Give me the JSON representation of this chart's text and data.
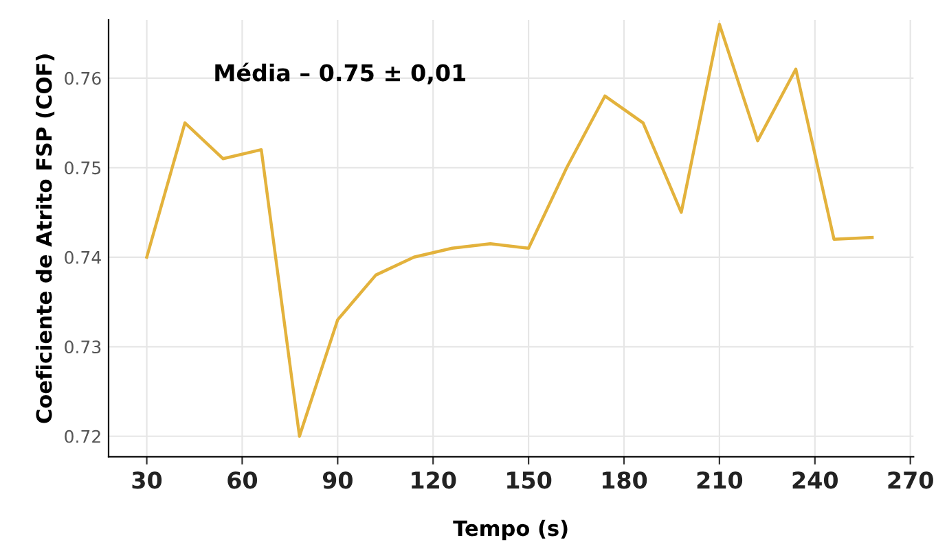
{
  "chart_data": {
    "type": "line",
    "xlabel": "Tempo (s)",
    "ylabel": "Coeficiente de Atrito FSP (COF)",
    "annotations": [
      "Média – 0.75 ± 0,01"
    ],
    "x": [
      30,
      42,
      54,
      66,
      78,
      90,
      102,
      114,
      126,
      138,
      150,
      162,
      174,
      186,
      198,
      210,
      222,
      234,
      246,
      258
    ],
    "series": [
      {
        "color": "#e3b23c",
        "values": [
          0.74,
          0.755,
          0.751,
          0.752,
          0.72,
          0.733,
          0.738,
          0.74,
          0.741,
          0.7415,
          0.741,
          0.75,
          0.758,
          0.755,
          0.745,
          0.766,
          0.753,
          0.761,
          0.742,
          0.7422
        ]
      }
    ],
    "xlim": [
      18,
      271
    ],
    "ylim": [
      0.7177,
      0.7665
    ],
    "xticks": [
      30,
      60,
      90,
      120,
      150,
      180,
      210,
      240,
      270
    ],
    "yticks": [
      {
        "value": 0.72,
        "label": "0.72"
      },
      {
        "value": 0.73,
        "label": "0.73"
      },
      {
        "value": 0.74,
        "label": "0.74"
      },
      {
        "value": 0.75,
        "label": "0.75"
      },
      {
        "value": 0.76,
        "label": "0.76"
      }
    ],
    "grid": true,
    "marker": "none",
    "line_style": "solid"
  }
}
